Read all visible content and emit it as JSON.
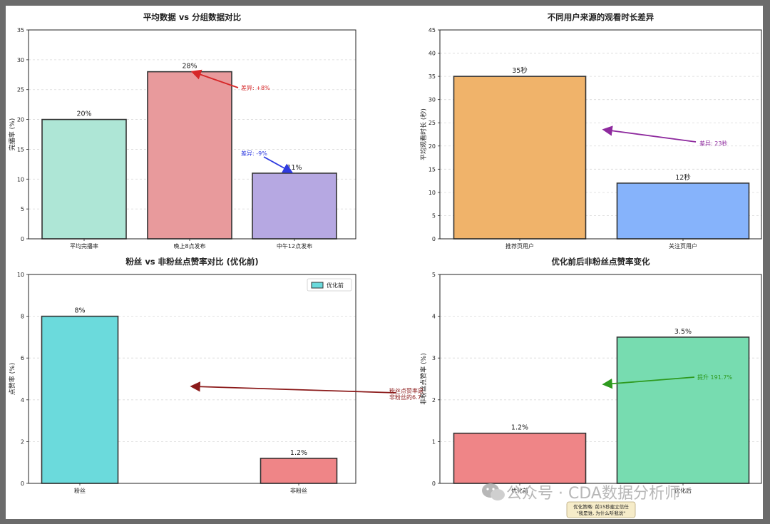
{
  "chart_data": [
    {
      "id": "c1",
      "type": "bar",
      "title": "平均数据 vs 分组数据对比",
      "ylabel": "完播率 (%)",
      "xlabel": "",
      "ylim": [
        0,
        35
      ],
      "yticks": [
        0,
        5,
        10,
        15,
        20,
        25,
        30,
        35
      ],
      "categories": [
        "平均完播率",
        "晚上8点发布",
        "中午12点发布"
      ],
      "values": [
        20,
        28,
        11
      ],
      "value_labels": [
        "20%",
        "28%",
        "11%"
      ],
      "colors": [
        "#aee6d6",
        "#e89a9c",
        "#b6a8e2"
      ],
      "grid": true,
      "annotations": [
        {
          "text": "差异: +8%",
          "color": "#d62728"
        },
        {
          "text": "差异: -9%",
          "color": "#2f3be0"
        }
      ]
    },
    {
      "id": "c2",
      "type": "bar",
      "title": "不同用户来源的观看时长差异",
      "ylabel": "平均观看时长 (秒)",
      "xlabel": "",
      "ylim": [
        0,
        45
      ],
      "yticks": [
        0,
        5,
        10,
        15,
        20,
        25,
        30,
        35,
        40,
        45
      ],
      "categories": [
        "推荐页用户",
        "关注页用户"
      ],
      "values": [
        35,
        12
      ],
      "value_labels": [
        "35秒",
        "12秒"
      ],
      "colors": [
        "#f0b36a",
        "#86b3fb"
      ],
      "grid": true,
      "annotations": [
        {
          "text": "差异: 23秒",
          "color": "#8e2a9e"
        }
      ]
    },
    {
      "id": "c3",
      "type": "bar",
      "title": "粉丝 vs 非粉丝点赞率对比 (优化前)",
      "ylabel": "点赞率 (%)",
      "xlabel": "",
      "ylim": [
        0,
        10
      ],
      "yticks": [
        0,
        2,
        4,
        6,
        8,
        10
      ],
      "categories": [
        "粉丝",
        "非粉丝"
      ],
      "values": [
        8,
        1.2
      ],
      "value_labels": [
        "8%",
        "1.2%"
      ],
      "colors": [
        "#6bdadc",
        "#ef8587"
      ],
      "legend": [
        "优化前"
      ],
      "legend_placement": "top-right",
      "grid": true,
      "annotations": [
        {
          "text": "粉丝点赞率是",
          "color": "#8b1a1a"
        },
        {
          "text": "非粉丝的6.7",
          "color": "#8b1a1a"
        }
      ]
    },
    {
      "id": "c4",
      "type": "bar",
      "title": "优化前后非粉丝点赞率变化",
      "ylabel": "非粉丝点赞率 (%)",
      "xlabel": "",
      "ylim": [
        0,
        5
      ],
      "yticks": [
        0,
        1,
        2,
        3,
        4,
        5
      ],
      "categories": [
        "优化前",
        "优化后"
      ],
      "values": [
        1.2,
        3.5
      ],
      "value_labels": [
        "1.2%",
        "3.5%"
      ],
      "colors": [
        "#ef8587",
        "#77dcb0"
      ],
      "grid": true,
      "annotations": [
        {
          "text": "提升 191.7%",
          "color": "#2e9a1f"
        }
      ],
      "note_lines": [
        "优化策略: 前15秒建立信任",
        "\"我是谁, 为什么听我说\""
      ]
    }
  ],
  "watermark": "公众号 · CDA数据分析师"
}
